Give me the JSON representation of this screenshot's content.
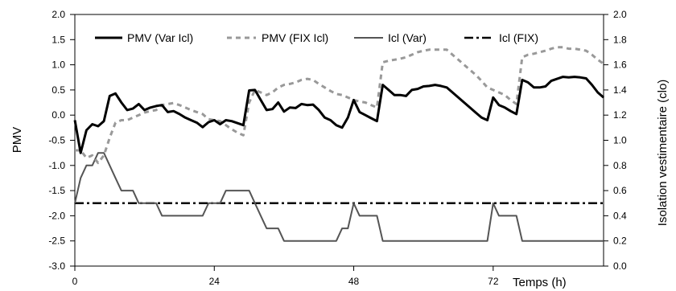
{
  "chart_data": {
    "type": "line",
    "title": "",
    "xlabel": "Temps (h)",
    "ylabel": "PMV",
    "y2label": "Isolation vestimentaire (clo)",
    "xlim": [
      0,
      91
    ],
    "ylim": [
      -3.0,
      2.0
    ],
    "y2lim": [
      0.0,
      2.0
    ],
    "x_ticks": [
      "0",
      "24",
      "48",
      "72"
    ],
    "y_ticks": [
      "-3.0",
      "-2.5",
      "-2.0",
      "-1.5",
      "-1.0",
      "-0.5",
      "0.0",
      "0.5",
      "1.0",
      "1.5",
      "2.0"
    ],
    "y2_ticks": [
      "0.0",
      "0.2",
      "0.4",
      "0.6",
      "0.8",
      "1.0",
      "1.2",
      "1.4",
      "1.6",
      "1.8",
      "2.0"
    ],
    "grid": false,
    "legend_position": "top",
    "series": [
      {
        "name": "PMV (Var Icl)",
        "axis": "left",
        "style": "solid-thick",
        "color": "#000000",
        "x": [
          0,
          1,
          2,
          3,
          4,
          5,
          6,
          7,
          8,
          9,
          10,
          11,
          12,
          13,
          14,
          15,
          16,
          17,
          18,
          19,
          20,
          21,
          22,
          23,
          24,
          25,
          26,
          27,
          28,
          29,
          30,
          31,
          32,
          33,
          34,
          35,
          36,
          37,
          38,
          39,
          40,
          41,
          42,
          43,
          44,
          45,
          46,
          47,
          48,
          49,
          50,
          51,
          52,
          53,
          54,
          55,
          56,
          57,
          58,
          59,
          60,
          61,
          62,
          63,
          64,
          65,
          66,
          67,
          68,
          69,
          70,
          71,
          72,
          73,
          74,
          75,
          76,
          77,
          78,
          79,
          80,
          81,
          82,
          83,
          84,
          85,
          86,
          87,
          88,
          89,
          90,
          91
        ],
        "y": [
          -0.1,
          -0.75,
          -0.3,
          -0.18,
          -0.22,
          -0.12,
          0.38,
          0.43,
          0.25,
          0.1,
          0.13,
          0.22,
          0.1,
          0.15,
          0.18,
          0.2,
          0.06,
          0.08,
          0.02,
          -0.05,
          -0.1,
          -0.15,
          -0.24,
          -0.14,
          -0.1,
          -0.18,
          -0.1,
          -0.12,
          -0.16,
          -0.2,
          0.49,
          0.5,
          0.3,
          0.1,
          0.12,
          0.25,
          0.07,
          0.15,
          0.14,
          0.22,
          0.2,
          0.21,
          0.1,
          -0.05,
          -0.1,
          -0.2,
          -0.25,
          -0.05,
          0.3,
          0.06,
          0.0,
          -0.06,
          -0.12,
          0.6,
          0.5,
          0.4,
          0.4,
          0.38,
          0.5,
          0.52,
          0.57,
          0.58,
          0.6,
          0.58,
          0.55,
          0.45,
          0.35,
          0.25,
          0.15,
          0.05,
          -0.05,
          -0.1,
          0.35,
          0.2,
          0.15,
          0.08,
          0.02,
          0.7,
          0.65,
          0.55,
          0.55,
          0.57,
          0.68,
          0.72,
          0.76,
          0.75,
          0.76,
          0.75,
          0.73,
          0.6,
          0.45,
          0.35
        ]
      },
      {
        "name": "PMV (FIX Icl)",
        "axis": "left",
        "style": "dashed",
        "color": "#999999",
        "x": [
          0,
          1,
          2,
          3,
          4,
          5,
          6,
          7,
          8,
          9,
          10,
          11,
          12,
          13,
          14,
          15,
          16,
          17,
          18,
          19,
          20,
          21,
          22,
          23,
          24,
          25,
          26,
          27,
          28,
          29,
          30,
          31,
          32,
          33,
          34,
          35,
          36,
          37,
          38,
          39,
          40,
          41,
          42,
          43,
          44,
          45,
          46,
          47,
          48,
          49,
          50,
          51,
          52,
          53,
          54,
          55,
          56,
          57,
          58,
          59,
          60,
          61,
          62,
          63,
          64,
          65,
          66,
          67,
          68,
          69,
          70,
          71,
          72,
          73,
          74,
          75,
          76,
          77,
          78,
          79,
          80,
          81,
          82,
          83,
          84,
          85,
          86,
          87,
          88,
          89,
          90,
          91
        ],
        "y": [
          -0.7,
          -0.7,
          -0.85,
          -0.8,
          -0.95,
          -0.8,
          -0.45,
          -0.15,
          -0.1,
          -0.1,
          -0.05,
          0.0,
          0.05,
          0.08,
          0.1,
          0.2,
          0.22,
          0.24,
          0.2,
          0.15,
          0.1,
          0.06,
          0.02,
          -0.08,
          -0.1,
          -0.12,
          -0.2,
          -0.28,
          -0.35,
          -0.4,
          0.25,
          0.5,
          0.45,
          0.4,
          0.45,
          0.55,
          0.6,
          0.62,
          0.65,
          0.7,
          0.72,
          0.7,
          0.62,
          0.55,
          0.48,
          0.42,
          0.4,
          0.35,
          0.3,
          0.27,
          0.25,
          0.2,
          0.15,
          1.05,
          1.08,
          1.1,
          1.12,
          1.15,
          1.2,
          1.25,
          1.28,
          1.3,
          1.3,
          1.3,
          1.3,
          1.2,
          1.1,
          1.0,
          0.9,
          0.8,
          0.68,
          0.55,
          0.5,
          0.45,
          0.4,
          0.3,
          0.22,
          1.15,
          1.2,
          1.22,
          1.25,
          1.28,
          1.32,
          1.35,
          1.35,
          1.32,
          1.32,
          1.3,
          1.28,
          1.2,
          1.1,
          1.02
        ]
      },
      {
        "name": "Icl (Var)",
        "axis": "right",
        "style": "solid-thin",
        "color": "#555555",
        "x": [
          0,
          1,
          2,
          3,
          4,
          5,
          6,
          7,
          8,
          9,
          10,
          11,
          12,
          13,
          14,
          15,
          16,
          17,
          18,
          19,
          20,
          21,
          22,
          23,
          24,
          25,
          26,
          27,
          28,
          29,
          30,
          31,
          32,
          33,
          34,
          35,
          36,
          37,
          38,
          39,
          40,
          41,
          42,
          43,
          44,
          45,
          46,
          47,
          48,
          49,
          50,
          51,
          52,
          53,
          54,
          55,
          56,
          57,
          58,
          59,
          60,
          61,
          62,
          63,
          64,
          65,
          66,
          67,
          68,
          69,
          70,
          71,
          72,
          73,
          74,
          75,
          76,
          77,
          78,
          79,
          80,
          81,
          82,
          83,
          84,
          85,
          86,
          87,
          88,
          89,
          90,
          91
        ],
        "y": [
          0.5,
          0.7,
          0.8,
          0.8,
          0.9,
          0.9,
          0.8,
          0.7,
          0.6,
          0.6,
          0.6,
          0.5,
          0.5,
          0.5,
          0.5,
          0.4,
          0.4,
          0.4,
          0.4,
          0.4,
          0.4,
          0.4,
          0.4,
          0.5,
          0.5,
          0.5,
          0.6,
          0.6,
          0.6,
          0.6,
          0.6,
          0.5,
          0.4,
          0.3,
          0.3,
          0.3,
          0.2,
          0.2,
          0.2,
          0.2,
          0.2,
          0.2,
          0.2,
          0.2,
          0.2,
          0.2,
          0.3,
          0.3,
          0.5,
          0.4,
          0.4,
          0.4,
          0.4,
          0.2,
          0.2,
          0.2,
          0.2,
          0.2,
          0.2,
          0.2,
          0.2,
          0.2,
          0.2,
          0.2,
          0.2,
          0.2,
          0.2,
          0.2,
          0.2,
          0.2,
          0.2,
          0.2,
          0.5,
          0.4,
          0.4,
          0.4,
          0.4,
          0.2,
          0.2,
          0.2,
          0.2,
          0.2,
          0.2,
          0.2,
          0.2,
          0.2,
          0.2,
          0.2,
          0.2,
          0.2,
          0.2,
          0.2
        ]
      },
      {
        "name": "Icl (FIX)",
        "axis": "right",
        "style": "dashdot",
        "color": "#000000",
        "x": [
          0,
          91
        ],
        "y": [
          0.5,
          0.5
        ]
      }
    ]
  }
}
